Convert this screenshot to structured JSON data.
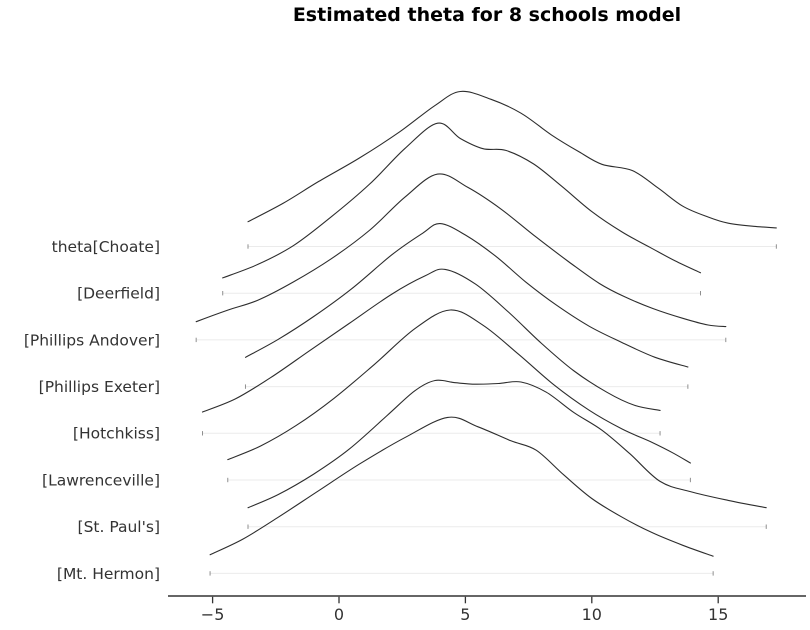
{
  "title": "Estimated theta for 8 schools model",
  "colors": {
    "curve": "#2d2d2d",
    "baseline": "#ebebeb",
    "baseline_cap": "#8f8f8f",
    "axis": "#333333",
    "tick_label": "#333333",
    "y_label": "#333333",
    "title": "#1c1c1c",
    "background": "#ffffff"
  },
  "chart_data": {
    "type": "ridgeline",
    "title": "Estimated theta for 8 schools model",
    "xlabel": "",
    "ylabel": "",
    "grid": false,
    "legend": false,
    "xlim": [
      -6.8,
      18.5
    ],
    "x_ticks": {
      "values": [
        -5,
        0,
        5,
        10,
        15
      ],
      "labels": [
        "−5",
        "0",
        "5",
        "10",
        "15"
      ]
    },
    "row_labels": [
      "theta[Choate]",
      "[Deerfield]",
      "[Phillips Andover]",
      "[Phillips Exeter]",
      "[Hotchkiss]",
      "[Lawrenceville]",
      "[St. Paul's]",
      "[Mt. Hermon]"
    ],
    "series": [
      {
        "label": "theta[Choate]",
        "row": 0,
        "support": [
          -3.6,
          17.3
        ],
        "peak_x": 4.8,
        "amp_rows": 3.32,
        "density": [
          [
            -3.6,
            0.16
          ],
          [
            -2.2,
            0.28
          ],
          [
            -0.8,
            0.42
          ],
          [
            0.8,
            0.57
          ],
          [
            2.4,
            0.74
          ],
          [
            3.8,
            0.91
          ],
          [
            4.8,
            1.0
          ],
          [
            6.0,
            0.95
          ],
          [
            7.2,
            0.86
          ],
          [
            8.4,
            0.72
          ],
          [
            9.5,
            0.61
          ],
          [
            10.4,
            0.53
          ],
          [
            11.6,
            0.49
          ],
          [
            12.6,
            0.38
          ],
          [
            13.6,
            0.26
          ],
          [
            14.6,
            0.19
          ],
          [
            15.4,
            0.15
          ],
          [
            16.4,
            0.13
          ],
          [
            17.3,
            0.12
          ]
        ]
      },
      {
        "label": "[Deerfield]",
        "row": 1,
        "support": [
          -4.6,
          14.3
        ],
        "peak_x": 3.9,
        "amp_rows": 3.64,
        "density": [
          [
            -4.6,
            0.09
          ],
          [
            -3.2,
            0.17
          ],
          [
            -1.8,
            0.28
          ],
          [
            -0.3,
            0.45
          ],
          [
            1.2,
            0.64
          ],
          [
            2.6,
            0.85
          ],
          [
            3.9,
            1.0
          ],
          [
            4.8,
            0.91
          ],
          [
            5.7,
            0.85
          ],
          [
            6.6,
            0.84
          ],
          [
            7.7,
            0.76
          ],
          [
            8.8,
            0.63
          ],
          [
            10.0,
            0.48
          ],
          [
            11.2,
            0.36
          ],
          [
            12.3,
            0.27
          ],
          [
            13.3,
            0.19
          ],
          [
            14.3,
            0.12
          ]
        ]
      },
      {
        "label": "[Phillips Andover]",
        "row": 2,
        "support": [
          -5.65,
          15.3
        ],
        "peak_x": 3.9,
        "amp_rows": 3.55,
        "density": [
          [
            -5.65,
            0.11
          ],
          [
            -4.4,
            0.18
          ],
          [
            -3.2,
            0.24
          ],
          [
            -1.8,
            0.35
          ],
          [
            -0.3,
            0.49
          ],
          [
            1.2,
            0.66
          ],
          [
            2.6,
            0.86
          ],
          [
            3.9,
            1.0
          ],
          [
            5.1,
            0.92
          ],
          [
            6.4,
            0.79
          ],
          [
            7.8,
            0.62
          ],
          [
            9.1,
            0.47
          ],
          [
            10.3,
            0.34
          ],
          [
            11.3,
            0.26
          ],
          [
            12.4,
            0.19
          ],
          [
            13.6,
            0.13
          ],
          [
            14.6,
            0.09
          ],
          [
            15.3,
            0.08
          ]
        ]
      },
      {
        "label": "[Phillips Exeter]",
        "row": 3,
        "support": [
          -3.7,
          13.8
        ],
        "peak_x": 4.0,
        "amp_rows": 3.49,
        "density": [
          [
            -3.7,
            0.18
          ],
          [
            -2.4,
            0.29
          ],
          [
            -1.0,
            0.43
          ],
          [
            0.5,
            0.6
          ],
          [
            2.1,
            0.81
          ],
          [
            3.3,
            0.94
          ],
          [
            4.0,
            1.0
          ],
          [
            5.0,
            0.93
          ],
          [
            6.2,
            0.8
          ],
          [
            7.4,
            0.64
          ],
          [
            8.6,
            0.5
          ],
          [
            9.9,
            0.37
          ],
          [
            11.2,
            0.27
          ],
          [
            12.5,
            0.18
          ],
          [
            13.8,
            0.12
          ]
        ]
      },
      {
        "label": "[Hotchkiss]",
        "row": 4,
        "support": [
          -5.4,
          12.7
        ],
        "peak_x": 4.2,
        "amp_rows": 3.51,
        "density": [
          [
            -5.4,
            0.13
          ],
          [
            -4.1,
            0.21
          ],
          [
            -2.7,
            0.34
          ],
          [
            -1.2,
            0.5
          ],
          [
            0.4,
            0.67
          ],
          [
            2.1,
            0.85
          ],
          [
            3.4,
            0.96
          ],
          [
            4.2,
            1.0
          ],
          [
            5.4,
            0.91
          ],
          [
            6.7,
            0.74
          ],
          [
            8.0,
            0.55
          ],
          [
            9.3,
            0.38
          ],
          [
            10.6,
            0.25
          ],
          [
            11.7,
            0.17
          ],
          [
            12.7,
            0.14
          ]
        ]
      },
      {
        "label": "[Lawrenceville]",
        "row": 5,
        "support": [
          -4.4,
          13.9
        ],
        "peak_x": 4.4,
        "amp_rows": 3.64,
        "density": [
          [
            -4.4,
            0.12
          ],
          [
            -3.1,
            0.2
          ],
          [
            -1.7,
            0.32
          ],
          [
            -0.2,
            0.48
          ],
          [
            1.4,
            0.68
          ],
          [
            3.0,
            0.89
          ],
          [
            4.4,
            1.0
          ],
          [
            5.7,
            0.91
          ],
          [
            7.1,
            0.74
          ],
          [
            8.5,
            0.56
          ],
          [
            9.9,
            0.41
          ],
          [
            11.2,
            0.3
          ],
          [
            12.4,
            0.22
          ],
          [
            13.2,
            0.16
          ],
          [
            13.9,
            0.1
          ]
        ]
      },
      {
        "label": "[St. Paul's]",
        "row": 6,
        "support": [
          -3.6,
          16.9
        ],
        "peak_x": 3.8,
        "amp_rows": 3.13,
        "density": [
          [
            -3.6,
            0.13
          ],
          [
            -2.4,
            0.22
          ],
          [
            -1.0,
            0.36
          ],
          [
            0.4,
            0.53
          ],
          [
            1.9,
            0.76
          ],
          [
            3.0,
            0.93
          ],
          [
            3.8,
            1.0
          ],
          [
            4.6,
            0.985
          ],
          [
            5.4,
            0.975
          ],
          [
            6.3,
            0.98
          ],
          [
            7.2,
            0.99
          ],
          [
            8.2,
            0.92
          ],
          [
            9.3,
            0.78
          ],
          [
            10.4,
            0.66
          ],
          [
            11.5,
            0.5
          ],
          [
            12.7,
            0.31
          ],
          [
            13.9,
            0.24
          ],
          [
            15.4,
            0.18
          ],
          [
            16.9,
            0.13
          ]
        ]
      },
      {
        "label": "[Mt. Hermon]",
        "row": 7,
        "support": [
          -5.1,
          14.8
        ],
        "peak_x": 4.3,
        "amp_rows": 3.34,
        "density": [
          [
            -5.1,
            0.12
          ],
          [
            -3.8,
            0.22
          ],
          [
            -2.4,
            0.36
          ],
          [
            -0.9,
            0.52
          ],
          [
            0.8,
            0.7
          ],
          [
            2.6,
            0.87
          ],
          [
            4.3,
            1.0
          ],
          [
            5.5,
            0.94
          ],
          [
            6.8,
            0.85
          ],
          [
            7.8,
            0.79
          ],
          [
            8.9,
            0.63
          ],
          [
            10.0,
            0.48
          ],
          [
            11.2,
            0.36
          ],
          [
            12.4,
            0.26
          ],
          [
            13.6,
            0.18
          ],
          [
            14.8,
            0.11
          ]
        ]
      }
    ]
  }
}
